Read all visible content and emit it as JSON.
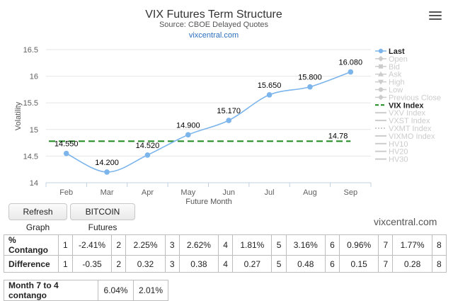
{
  "chart_data": {
    "type": "line",
    "title": "VIX Futures Term Structure",
    "subtitle": "Source: CBOE Delayed Quotes",
    "link_text": "vixcentral.com",
    "xlabel": "Future Month",
    "ylabel": "Volatility",
    "categories": [
      "Feb",
      "Mar",
      "Apr",
      "May",
      "Jun",
      "Jul",
      "Aug",
      "Sep"
    ],
    "ylim": [
      14,
      16.5
    ],
    "yticks": [
      "14",
      "14.5",
      "15",
      "15.5",
      "16",
      "16.5"
    ],
    "grid": true,
    "legend_position": "right",
    "series": [
      {
        "name": "Last",
        "values": [
          14.55,
          14.2,
          14.52,
          14.9,
          15.17,
          15.65,
          15.8,
          16.08
        ],
        "labels": [
          "14.550",
          "14.200",
          "14.520",
          "14.900",
          "15.170",
          "15.650",
          "15.800",
          "16.080"
        ],
        "color": "#7cb5ec"
      },
      {
        "name": "VIX Index",
        "value": 14.78,
        "label": "14.78",
        "color": "#1b8a1b",
        "style": "dashed"
      }
    ],
    "legend": [
      {
        "name": "Last",
        "active": true,
        "symbol": "dot",
        "color": "#7cb5ec"
      },
      {
        "name": "Open",
        "active": false,
        "symbol": "diamond"
      },
      {
        "name": "Bid",
        "active": false,
        "symbol": "square"
      },
      {
        "name": "Ask",
        "active": false,
        "symbol": "triangle"
      },
      {
        "name": "High",
        "active": false,
        "symbol": "triangle-down"
      },
      {
        "name": "Low",
        "active": false,
        "symbol": "dot"
      },
      {
        "name": "Previous Close",
        "active": false,
        "symbol": "diamond"
      },
      {
        "name": "VIX Index",
        "active": true,
        "symbol": "dash",
        "color": "#1b8a1b"
      },
      {
        "name": "VXV Index",
        "active": false,
        "symbol": "line"
      },
      {
        "name": "VXST Index",
        "active": false,
        "symbol": "line"
      },
      {
        "name": "VXMT Index",
        "active": false,
        "symbol": "dotted"
      },
      {
        "name": "VIXMO Index",
        "active": false,
        "symbol": "line"
      },
      {
        "name": "HV10",
        "active": false,
        "symbol": "line"
      },
      {
        "name": "HV20",
        "active": false,
        "symbol": "line"
      },
      {
        "name": "HV30",
        "active": false,
        "symbol": "line"
      }
    ]
  },
  "buttons": {
    "refresh": "Refresh Graph",
    "bitcoin": "BITCOIN Futures"
  },
  "watermark": "vixcentral.com",
  "contango_table": {
    "rows": [
      {
        "label": "% Contango",
        "cells": [
          {
            "idx": "1",
            "val": "-2.41%"
          },
          {
            "idx": "2",
            "val": "2.25%"
          },
          {
            "idx": "3",
            "val": "2.62%"
          },
          {
            "idx": "4",
            "val": "1.81%"
          },
          {
            "idx": "5",
            "val": "3.16%"
          },
          {
            "idx": "6",
            "val": "0.96%"
          },
          {
            "idx": "7",
            "val": "1.77%"
          },
          {
            "idx": "8",
            "val": ""
          }
        ]
      },
      {
        "label": "Difference",
        "cells": [
          {
            "idx": "1",
            "val": "-0.35"
          },
          {
            "idx": "2",
            "val": "0.32"
          },
          {
            "idx": "3",
            "val": "0.38"
          },
          {
            "idx": "4",
            "val": "0.27"
          },
          {
            "idx": "5",
            "val": "0.48"
          },
          {
            "idx": "6",
            "val": "0.15"
          },
          {
            "idx": "7",
            "val": "0.28"
          },
          {
            "idx": "8",
            "val": ""
          }
        ]
      }
    ]
  },
  "month_contango": {
    "label": "Month 7 to 4 contango",
    "value1": "6.04%",
    "value2": "2.01%"
  }
}
